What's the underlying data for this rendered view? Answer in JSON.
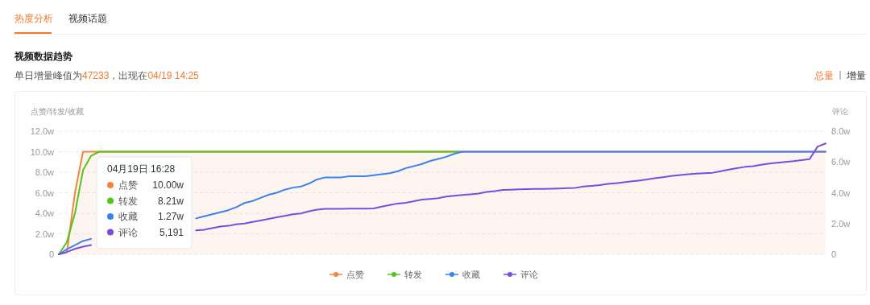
{
  "chart_data": {
    "type": "line",
    "title": "视频数据趋势",
    "subtitle": "单日增量峰值为47233，出现在04/19 14:25",
    "ylabel": "点赞/转发/收藏",
    "y2label": "评论",
    "annotations": [
      "热度分析",
      "视频话题",
      "总量",
      "增量",
      "04月19日 16:28",
      "10.00w",
      "8.21w",
      "1.27w",
      "5,191"
    ],
    "categories": [
      null,
      null,
      null,
      null,
      null,
      null,
      null,
      null,
      null,
      null,
      null,
      null,
      null,
      null,
      null,
      null,
      null,
      null,
      null,
      null,
      null,
      null,
      null,
      null,
      null,
      null,
      null,
      null,
      null,
      null,
      null,
      null,
      null,
      null,
      null,
      null,
      null,
      null,
      null,
      null,
      null,
      null,
      null,
      null,
      null,
      null,
      null,
      null,
      null,
      null,
      null,
      null,
      null,
      null,
      null,
      null,
      null,
      null,
      null,
      null,
      null,
      null,
      null,
      null,
      null,
      null,
      null,
      null,
      null,
      null,
      null,
      null,
      null,
      null,
      null,
      null,
      null,
      null,
      null,
      null,
      null,
      null,
      null,
      null,
      null,
      null,
      null,
      null,
      null,
      null,
      null,
      null,
      null,
      null,
      null,
      null
    ],
    "series": [
      {
        "name": "点赞",
        "type": "area",
        "color": "#f5843c",
        "values": [
          0,
          0.2,
          6.0,
          10,
          10,
          10,
          10,
          10,
          10,
          10,
          10,
          10,
          10,
          10,
          10,
          10,
          10,
          10,
          10,
          10,
          10,
          10,
          10,
          10,
          10,
          10,
          10,
          10,
          10,
          10,
          10,
          10,
          10,
          10,
          10,
          10,
          10,
          10,
          10,
          10,
          10,
          10,
          10,
          10,
          10,
          10,
          10,
          10,
          10,
          10,
          10,
          10,
          10,
          10,
          10,
          10,
          10,
          10,
          10,
          10,
          10,
          10,
          10,
          10,
          10,
          10,
          10,
          10,
          10,
          10,
          10,
          10,
          10,
          10,
          10,
          10,
          10,
          10,
          10,
          10,
          10,
          10,
          10,
          10,
          10,
          10,
          10,
          10,
          10,
          10,
          10,
          10,
          10,
          10,
          10,
          10
        ]
      },
      {
        "name": "转发",
        "color": "#52c41a",
        "values": [
          0,
          1.2,
          4.0,
          8.2,
          9.6,
          10,
          10,
          10,
          10,
          10,
          10,
          10,
          10,
          10,
          10,
          10,
          10,
          10,
          10,
          10,
          10,
          10,
          10,
          10,
          10,
          10,
          10,
          10,
          10,
          10,
          10,
          10,
          10,
          10,
          10,
          10,
          10,
          10,
          10,
          10,
          10,
          10,
          10,
          10,
          10,
          10,
          10,
          10,
          10,
          10,
          10,
          null,
          null,
          null,
          null,
          null,
          null,
          null,
          null,
          null,
          null,
          null,
          null,
          null,
          null,
          null,
          null,
          null,
          null,
          null,
          null,
          null,
          null,
          null,
          null,
          null,
          null,
          null,
          null,
          null,
          null,
          null,
          null,
          null,
          null,
          null,
          null,
          null,
          null,
          null,
          null,
          null,
          null,
          null,
          null,
          null
        ]
      },
      {
        "name": "收藏",
        "color": "#3b82f0",
        "values": [
          0,
          0.5,
          0.9,
          1.3,
          1.5,
          null,
          null,
          null,
          null,
          null,
          null,
          null,
          null,
          null,
          null,
          null,
          null,
          3.5,
          3.7,
          3.9,
          4.1,
          4.3,
          4.6,
          5.0,
          5.2,
          5.5,
          5.8,
          6.0,
          6.3,
          6.5,
          6.6,
          6.9,
          7.3,
          7.5,
          7.5,
          7.5,
          7.6,
          7.6,
          7.6,
          7.7,
          7.8,
          7.9,
          8.1,
          8.4,
          8.6,
          8.8,
          9.1,
          9.3,
          9.5,
          9.8,
          10,
          10,
          10,
          10,
          10,
          10,
          10,
          10,
          10,
          10,
          10,
          10,
          10,
          10,
          10,
          10,
          10,
          10,
          10,
          10,
          10,
          10,
          10,
          10,
          10,
          10,
          10,
          10,
          10,
          10,
          10,
          10,
          10,
          10,
          10,
          10,
          10,
          10,
          10,
          10,
          10,
          10,
          10,
          10,
          10,
          10
        ]
      },
      {
        "name": "评论",
        "color": "#7a4ce0",
        "axis": "y2",
        "values": [
          0,
          0.15,
          0.35,
          0.5,
          0.6,
          null,
          null,
          null,
          null,
          null,
          null,
          null,
          null,
          null,
          null,
          null,
          null,
          1.55,
          1.6,
          1.7,
          1.8,
          1.85,
          1.95,
          2.0,
          2.1,
          2.2,
          2.3,
          2.4,
          2.5,
          2.6,
          2.65,
          2.8,
          2.9,
          2.95,
          2.95,
          2.95,
          2.97,
          2.97,
          2.97,
          2.98,
          3.1,
          3.2,
          3.3,
          3.35,
          3.45,
          3.55,
          3.6,
          3.65,
          3.75,
          3.8,
          3.85,
          3.9,
          3.95,
          4.05,
          4.1,
          4.18,
          4.2,
          4.22,
          4.24,
          4.25,
          4.25,
          4.26,
          4.28,
          4.3,
          4.32,
          4.4,
          4.45,
          4.5,
          4.58,
          4.62,
          4.68,
          4.74,
          4.8,
          4.87,
          4.95,
          5.02,
          5.1,
          5.15,
          5.2,
          5.24,
          5.27,
          5.3,
          5.4,
          5.5,
          5.6,
          5.68,
          5.72,
          5.82,
          5.9,
          5.95,
          6.0,
          6.05,
          6.12,
          6.18,
          7.0,
          7.2
        ]
      }
    ],
    "ylim": [
      0,
      12
    ],
    "yticks": [
      0,
      {
        "value": 2,
        "label": "2.0w"
      },
      {
        "value": 4,
        "label": "4.0w"
      },
      {
        "value": 6,
        "label": "6.0w"
      },
      {
        "value": 8,
        "label": "8.0w"
      },
      {
        "value": 10,
        "label": "10.0w"
      },
      {
        "value": 12,
        "label": "12.0w"
      }
    ],
    "y2lim": [
      0,
      8
    ],
    "y2ticks": [
      0,
      {
        "value": 2,
        "label": "2.0w"
      },
      {
        "value": 4,
        "label": "4.0w"
      },
      {
        "value": 6,
        "label": "6.0w"
      },
      {
        "value": 8,
        "label": "8.0w"
      }
    ],
    "grid": "y",
    "legend": "bottom"
  }
}
